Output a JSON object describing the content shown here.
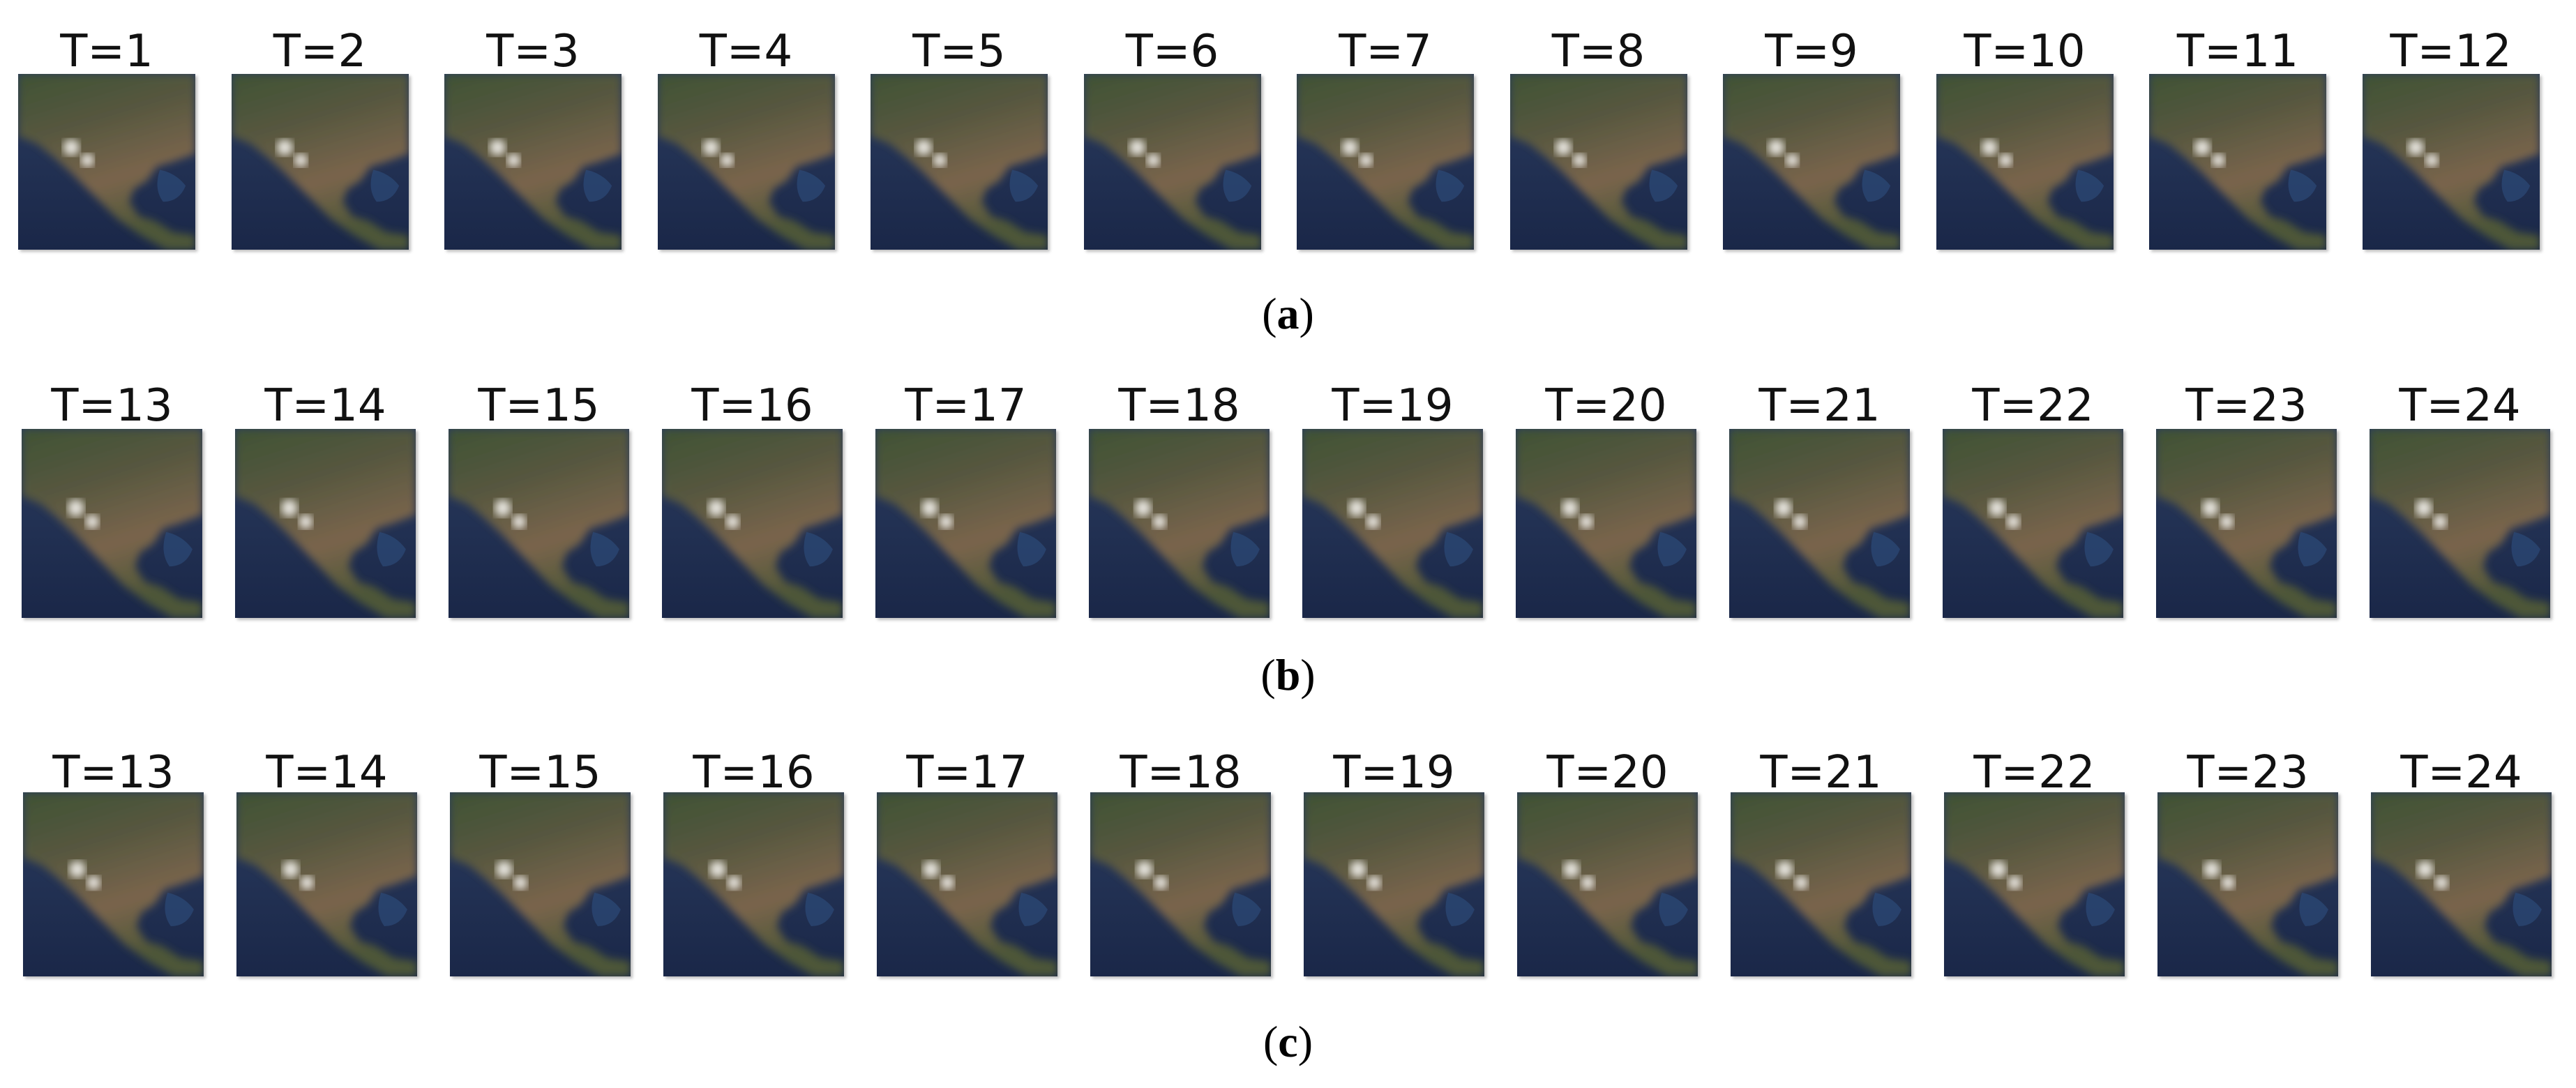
{
  "rows": [
    {
      "labels": [
        "T=1",
        "T=2",
        "T=3",
        "T=4",
        "T=5",
        "T=6",
        "T=7",
        "T=8",
        "T=9",
        "T=10",
        "T=11",
        "T=12"
      ],
      "caption": "(a)"
    },
    {
      "labels": [
        "T=13",
        "T=14",
        "T=15",
        "T=16",
        "T=17",
        "T=18",
        "T=19",
        "T=20",
        "T=21",
        "T=22",
        "T=23",
        "T=24"
      ],
      "caption": "(b)"
    },
    {
      "labels": [
        "T=13",
        "T=14",
        "T=15",
        "T=16",
        "T=17",
        "T=18",
        "T=19",
        "T=20",
        "T=21",
        "T=22",
        "T=23",
        "T=24"
      ],
      "caption": "(c)"
    }
  ]
}
